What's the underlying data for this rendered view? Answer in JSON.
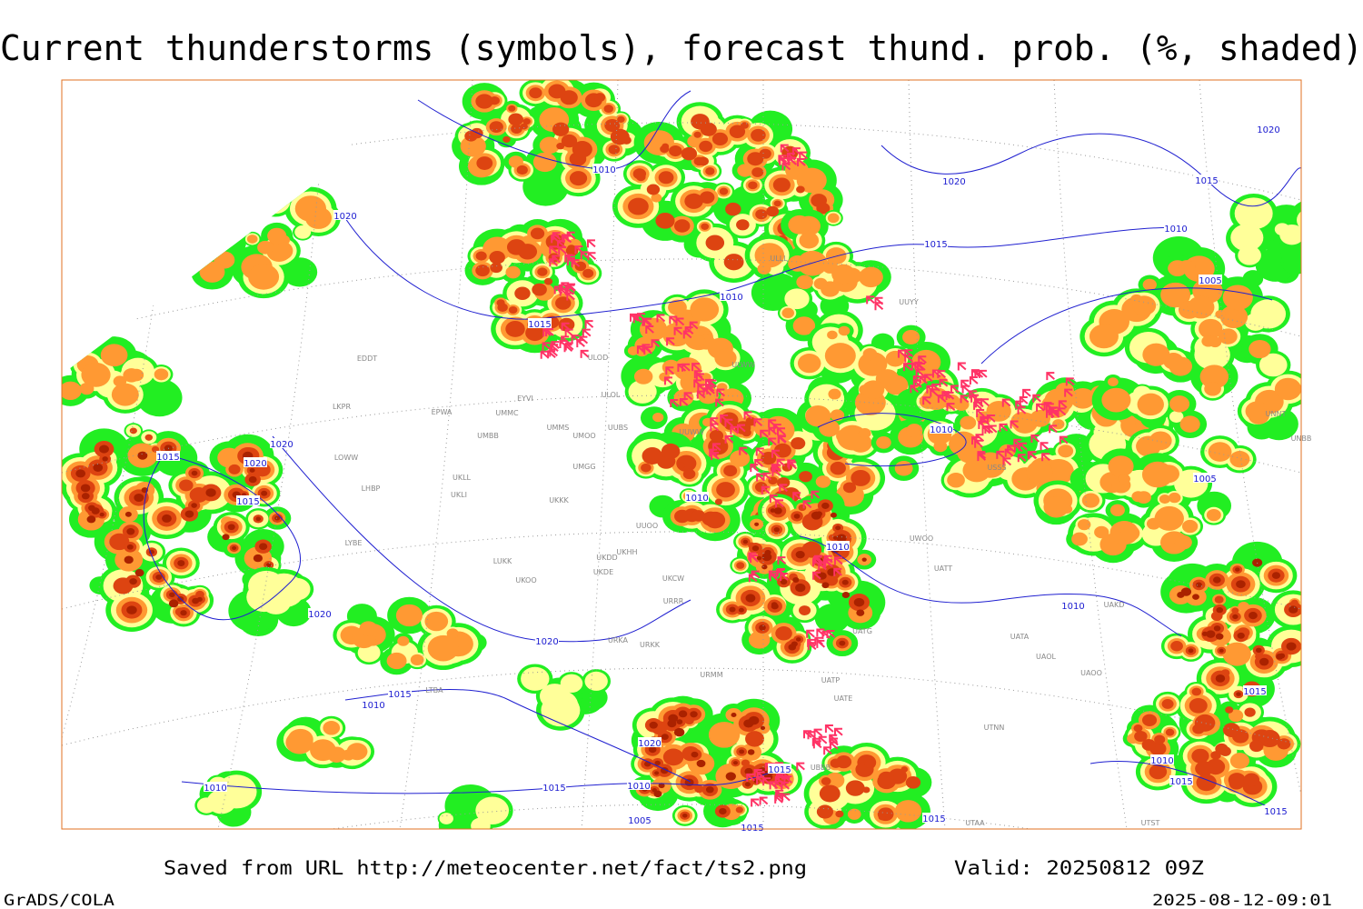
{
  "title": "Current thunderstorms (symbols), forecast thund. prob. (%, shaded)",
  "footer": {
    "source": "Saved from URL http://meteocenter.net/fact/ts2.png",
    "valid": "Valid: 20250812 09Z",
    "software": "GrADS/COLA",
    "timestamp": "2025-08-12-09:01"
  },
  "isobar_labels": [
    1020,
    1010,
    1020,
    1015,
    1020,
    1010,
    1015,
    1010,
    1015,
    1005,
    1010,
    1020,
    1015,
    1020,
    1015,
    1010,
    1005,
    1010,
    1020,
    1020,
    1010,
    1015,
    1010,
    1015,
    1020,
    1010,
    1015,
    1010,
    1015,
    1010,
    1015,
    1005,
    1015,
    1015,
    1015
  ],
  "stations": [
    "EDDT",
    "LKPR",
    "EPWA",
    "UMMC",
    "EYVI",
    "UMBB",
    "LOWW",
    "LHBP",
    "UKLL",
    "UKLI",
    "UMMS",
    "UMOO",
    "UUBS",
    "UMGG",
    "UKKK",
    "LYBE",
    "LUKK",
    "UKDD",
    "UKDE",
    "UKOO",
    "UKHH",
    "UKCW",
    "URRR",
    "ULOD",
    "ULOL",
    "UUWW",
    "ULWW",
    "UUOO",
    "ULLL",
    "UUYY",
    "USSS",
    "UNNT",
    "UNBB",
    "UATT",
    "UWOO",
    "UAKD",
    "UATA",
    "UAOL",
    "UAOO",
    "UTNN",
    "UTAA",
    "UTST",
    "URKA",
    "URKK",
    "URMM",
    "UATG",
    "UATE",
    "UATP",
    "UBBB",
    "LTBA"
  ]
}
